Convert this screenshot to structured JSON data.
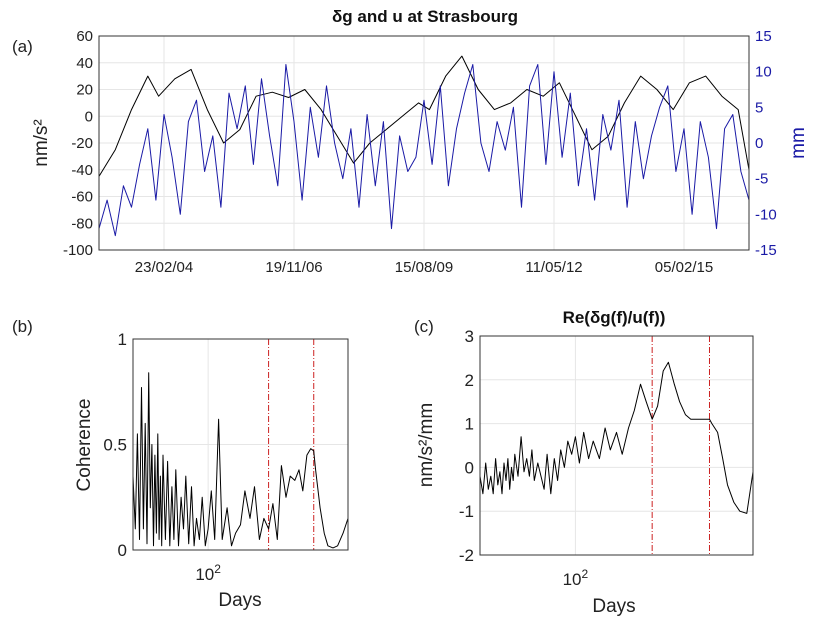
{
  "chart_data": [
    {
      "type": "line",
      "panel_label": "(a)",
      "title": "δg and u at Strasbourg",
      "xlabel": "",
      "ylabel": "nm/s²",
      "ylabel_right": "mm",
      "x_ticks": [
        "23/02/04",
        "19/11/06",
        "15/08/09",
        "11/05/12",
        "05/02/15"
      ],
      "xlim": [
        0,
        12
      ],
      "ylim": [
        -100,
        60
      ],
      "yticks": [
        -100,
        -80,
        -60,
        -40,
        -20,
        0,
        20,
        40,
        60
      ],
      "ylim_right": [
        -15,
        15
      ],
      "yticks_right": [
        -15,
        -10,
        -5,
        0,
        5,
        10,
        15
      ],
      "grid": true,
      "series": [
        {
          "color": "#000000",
          "axis": "left",
          "x": [
            0,
            0.3,
            0.6,
            0.9,
            1.1,
            1.4,
            1.7,
            2.0,
            2.3,
            2.6,
            2.9,
            3.2,
            3.5,
            3.8,
            4.1,
            4.4,
            4.7,
            5.0,
            5.3,
            5.6,
            5.9,
            6.1,
            6.4,
            6.7,
            7.0,
            7.3,
            7.6,
            7.9,
            8.2,
            8.5,
            8.8,
            9.1,
            9.4,
            9.7,
            10.0,
            10.3,
            10.6,
            10.9,
            11.2,
            11.5,
            11.8,
            12.0
          ],
          "y": [
            -45,
            -25,
            5,
            30,
            15,
            28,
            35,
            5,
            -20,
            -10,
            15,
            18,
            14,
            20,
            5,
            -15,
            -35,
            -20,
            -10,
            0,
            10,
            5,
            30,
            45,
            20,
            5,
            10,
            20,
            15,
            25,
            0,
            -25,
            -15,
            10,
            30,
            20,
            5,
            25,
            30,
            15,
            5,
            -40
          ]
        },
        {
          "color": "#1a1aa6",
          "axis": "right",
          "x": [
            0,
            0.15,
            0.3,
            0.45,
            0.6,
            0.75,
            0.9,
            1.05,
            1.2,
            1.35,
            1.5,
            1.65,
            1.8,
            1.95,
            2.1,
            2.25,
            2.4,
            2.55,
            2.7,
            2.85,
            3.0,
            3.15,
            3.3,
            3.45,
            3.6,
            3.75,
            3.9,
            4.05,
            4.2,
            4.35,
            4.5,
            4.65,
            4.8,
            4.95,
            5.1,
            5.25,
            5.4,
            5.55,
            5.7,
            5.85,
            6.0,
            6.15,
            6.3,
            6.45,
            6.6,
            6.75,
            6.9,
            7.05,
            7.2,
            7.35,
            7.5,
            7.65,
            7.8,
            7.95,
            8.1,
            8.25,
            8.4,
            8.55,
            8.7,
            8.85,
            9.0,
            9.15,
            9.3,
            9.45,
            9.6,
            9.75,
            9.9,
            10.05,
            10.2,
            10.35,
            10.5,
            10.65,
            10.8,
            10.95,
            11.1,
            11.25,
            11.4,
            11.55,
            11.7,
            11.85,
            12.0
          ],
          "y": [
            -12,
            -8,
            -13,
            -6,
            -9,
            -3,
            2,
            -8,
            4,
            -2,
            -10,
            3,
            6,
            -4,
            1,
            -9,
            7,
            2,
            8,
            -3,
            9,
            1,
            -6,
            11,
            3,
            -8,
            5,
            -2,
            8,
            0,
            -5,
            2,
            -9,
            4,
            -6,
            3,
            -12,
            1,
            -4,
            -2,
            6,
            -3,
            8,
            -6,
            2,
            7,
            11,
            0,
            -4,
            3,
            -1,
            5,
            -9,
            8,
            11,
            -3,
            10,
            -2,
            7,
            -6,
            2,
            -8,
            4,
            -1,
            6,
            -9,
            3,
            -5,
            1,
            5,
            8,
            -4,
            2,
            -10,
            3,
            -2,
            -12,
            2,
            4,
            -4,
            -8
          ]
        }
      ]
    },
    {
      "type": "line",
      "panel_label": "(b)",
      "title": "",
      "xlabel": "Days",
      "ylabel": "Coherence",
      "x_tick_label_base": "10",
      "x_tick_label_exp": "2",
      "xscale": "log",
      "xlim": [
        20,
        2000
      ],
      "ylim": [
        0,
        1
      ],
      "yticks": [
        0,
        0.5,
        1
      ],
      "grid": true,
      "vlines": [
        365,
        960
      ],
      "vline_color": "#cc2222",
      "series": [
        {
          "color": "#000000",
          "x": [
            20,
            21,
            22,
            23,
            24,
            25,
            26,
            27,
            28,
            29,
            30,
            31,
            32,
            33,
            34,
            35,
            36,
            37,
            38,
            40,
            42,
            44,
            46,
            48,
            50,
            53,
            56,
            59,
            62,
            66,
            70,
            74,
            78,
            83,
            88,
            94,
            100,
            107,
            115,
            125,
            135,
            150,
            165,
            180,
            200,
            220,
            245,
            270,
            300,
            330,
            365,
            400,
            440,
            480,
            530,
            580,
            640,
            700,
            760,
            830,
            900,
            960,
            1000,
            1100,
            1200,
            1300,
            1450,
            1600,
            1800,
            2000
          ],
          "y": [
            0.35,
            0.1,
            0.55,
            0.05,
            0.77,
            0.1,
            0.6,
            0.03,
            0.84,
            0.2,
            0.5,
            0.02,
            0.45,
            0.08,
            0.55,
            0.05,
            0.35,
            0.02,
            0.45,
            0.05,
            0.42,
            0.02,
            0.3,
            0.05,
            0.38,
            0.02,
            0.25,
            0.1,
            0.35,
            0.03,
            0.3,
            0.02,
            0.15,
            0.05,
            0.25,
            0.02,
            0.1,
            0.28,
            0.05,
            0.62,
            0.05,
            0.2,
            0.02,
            0.08,
            0.12,
            0.28,
            0.15,
            0.3,
            0.05,
            0.15,
            0.1,
            0.22,
            0.05,
            0.4,
            0.25,
            0.35,
            0.33,
            0.38,
            0.28,
            0.45,
            0.48,
            0.47,
            0.38,
            0.2,
            0.08,
            0.02,
            0.01,
            0.02,
            0.08,
            0.15
          ]
        }
      ]
    },
    {
      "type": "line",
      "panel_label": "(c)",
      "title": "Re(δg(f)/u(f))",
      "xlabel": "Days",
      "ylabel": "nm/s²/mm",
      "x_tick_label_base": "10",
      "x_tick_label_exp": "2",
      "xscale": "log",
      "xlim": [
        20,
        2000
      ],
      "ylim": [
        -2,
        3
      ],
      "yticks": [
        -2,
        -1,
        0,
        1,
        2,
        3
      ],
      "grid": true,
      "vlines": [
        365,
        960
      ],
      "vline_color": "#cc2222",
      "series": [
        {
          "color": "#000000",
          "x": [
            20,
            21,
            22,
            23,
            24,
            25,
            26,
            27,
            28,
            29,
            30,
            31,
            32,
            33,
            34,
            35,
            36,
            38,
            40,
            42,
            44,
            46,
            48,
            50,
            53,
            56,
            59,
            62,
            66,
            70,
            74,
            78,
            83,
            88,
            94,
            100,
            107,
            115,
            125,
            135,
            150,
            165,
            180,
            200,
            220,
            245,
            270,
            300,
            330,
            365,
            400,
            440,
            480,
            530,
            580,
            640,
            700,
            760,
            830,
            900,
            960,
            1000,
            1100,
            1200,
            1300,
            1450,
            1600,
            1800,
            2000
          ],
          "y": [
            -0.2,
            -0.6,
            0.1,
            -0.5,
            -0.2,
            -0.6,
            0.2,
            -0.4,
            -0.1,
            -0.6,
            0.1,
            -0.3,
            0.2,
            -0.5,
            0.0,
            -0.3,
            0.3,
            -0.2,
            0.7,
            -0.1,
            0.2,
            -0.2,
            0.4,
            -0.3,
            0.1,
            -0.2,
            -0.5,
            0.3,
            -0.6,
            0.2,
            -0.3,
            0.4,
            0.0,
            0.6,
            0.3,
            0.7,
            0.1,
            0.8,
            0.2,
            0.6,
            0.2,
            0.9,
            0.4,
            0.8,
            0.3,
            0.9,
            1.3,
            1.9,
            1.5,
            1.1,
            1.4,
            2.2,
            2.4,
            1.9,
            1.5,
            1.2,
            1.1,
            1.1,
            1.1,
            1.1,
            1.1,
            1.0,
            0.8,
            0.2,
            -0.4,
            -0.8,
            -1.0,
            -1.05,
            -0.1
          ]
        }
      ]
    }
  ]
}
